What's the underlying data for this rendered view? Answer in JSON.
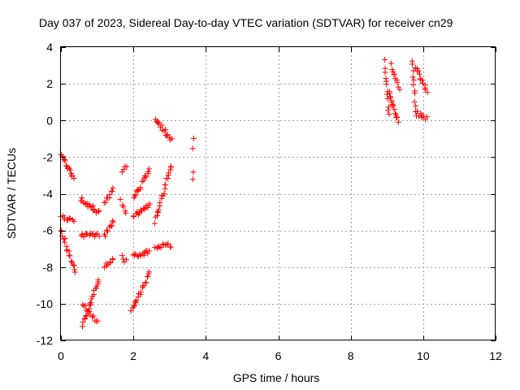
{
  "chart_data": {
    "type": "scatter",
    "title": "Day 037 of 2023, Sidereal Day-to-day VTEC variation (SDTVAR) for receiver cn29",
    "xlabel": "GPS time / hours",
    "ylabel": "SDTVAR / TECUs",
    "xlim": [
      0,
      12
    ],
    "ylim": [
      -12,
      4
    ],
    "xticks": [
      0,
      2,
      4,
      6,
      8,
      10,
      12
    ],
    "yticks": [
      -12,
      -10,
      -8,
      -6,
      -4,
      -2,
      0,
      2,
      4
    ],
    "grid": true,
    "marker": "+",
    "marker_color": "#ff0000",
    "series": [
      {
        "name": "SDTVAR",
        "segments": [
          {
            "x0": 0.0,
            "y0": -1.9,
            "x1": 0.35,
            "y1": -3.2,
            "n": 14
          },
          {
            "x0": 0.0,
            "y0": -5.3,
            "x1": 0.35,
            "y1": -5.4,
            "n": 10
          },
          {
            "x0": 0.0,
            "y0": -6.0,
            "x1": 0.4,
            "y1": -8.3,
            "n": 18
          },
          {
            "x0": 0.55,
            "y0": -4.3,
            "x1": 1.05,
            "y1": -5.0,
            "n": 18
          },
          {
            "x0": 0.55,
            "y0": -6.3,
            "x1": 1.05,
            "y1": -6.2,
            "n": 14
          },
          {
            "x0": 0.6,
            "y0": -11.2,
            "x1": 1.05,
            "y1": -8.6,
            "n": 22
          },
          {
            "x0": 0.6,
            "y0": -10.0,
            "x1": 1.0,
            "y1": -11.0,
            "n": 12
          },
          {
            "x0": 1.2,
            "y0": -4.5,
            "x1": 1.45,
            "y1": -3.7,
            "n": 9
          },
          {
            "x0": 1.2,
            "y0": -6.3,
            "x1": 1.45,
            "y1": -5.5,
            "n": 9
          },
          {
            "x0": 1.2,
            "y0": -7.9,
            "x1": 1.45,
            "y1": -7.6,
            "n": 8
          },
          {
            "x0": 1.7,
            "y0": -2.7,
            "x1": 1.8,
            "y1": -2.4,
            "n": 4
          },
          {
            "x0": 1.65,
            "y0": -4.4,
            "x1": 1.8,
            "y1": -5.0,
            "n": 5
          },
          {
            "x0": 1.7,
            "y0": -7.4,
            "x1": 1.8,
            "y1": -7.7,
            "n": 4
          },
          {
            "x0": 1.95,
            "y0": -10.4,
            "x1": 2.45,
            "y1": -8.3,
            "n": 20
          },
          {
            "x0": 2.0,
            "y0": -4.3,
            "x1": 2.45,
            "y1": -2.7,
            "n": 16
          },
          {
            "x0": 2.0,
            "y0": -5.2,
            "x1": 2.45,
            "y1": -4.6,
            "n": 16
          },
          {
            "x0": 2.0,
            "y0": -7.4,
            "x1": 2.45,
            "y1": -7.2,
            "n": 14
          },
          {
            "x0": 2.6,
            "y0": 0.1,
            "x1": 3.05,
            "y1": -1.1,
            "n": 16
          },
          {
            "x0": 2.6,
            "y0": -5.5,
            "x1": 3.05,
            "y1": -2.4,
            "n": 22
          },
          {
            "x0": 2.6,
            "y0": -6.9,
            "x1": 3.05,
            "y1": -6.8,
            "n": 12
          },
          {
            "x0": 3.65,
            "y0": -0.9,
            "x1": 3.65,
            "y1": -1.6,
            "n": 2
          },
          {
            "x0": 3.65,
            "y0": -2.8,
            "x1": 3.65,
            "y1": -3.3,
            "n": 2
          },
          {
            "x0": 8.95,
            "y0": 3.2,
            "x1": 9.05,
            "y1": 0.3,
            "n": 12
          },
          {
            "x0": 9.05,
            "y0": 1.5,
            "x1": 9.3,
            "y1": 0.0,
            "n": 16
          },
          {
            "x0": 9.1,
            "y0": 3.0,
            "x1": 9.35,
            "y1": 1.8,
            "n": 10
          },
          {
            "x0": 9.7,
            "y0": 3.3,
            "x1": 9.8,
            "y1": 0.3,
            "n": 12
          },
          {
            "x0": 9.8,
            "y0": 2.9,
            "x1": 10.1,
            "y1": 1.6,
            "n": 14
          },
          {
            "x0": 9.85,
            "y0": 0.4,
            "x1": 10.1,
            "y1": 0.1,
            "n": 8
          }
        ]
      }
    ]
  }
}
